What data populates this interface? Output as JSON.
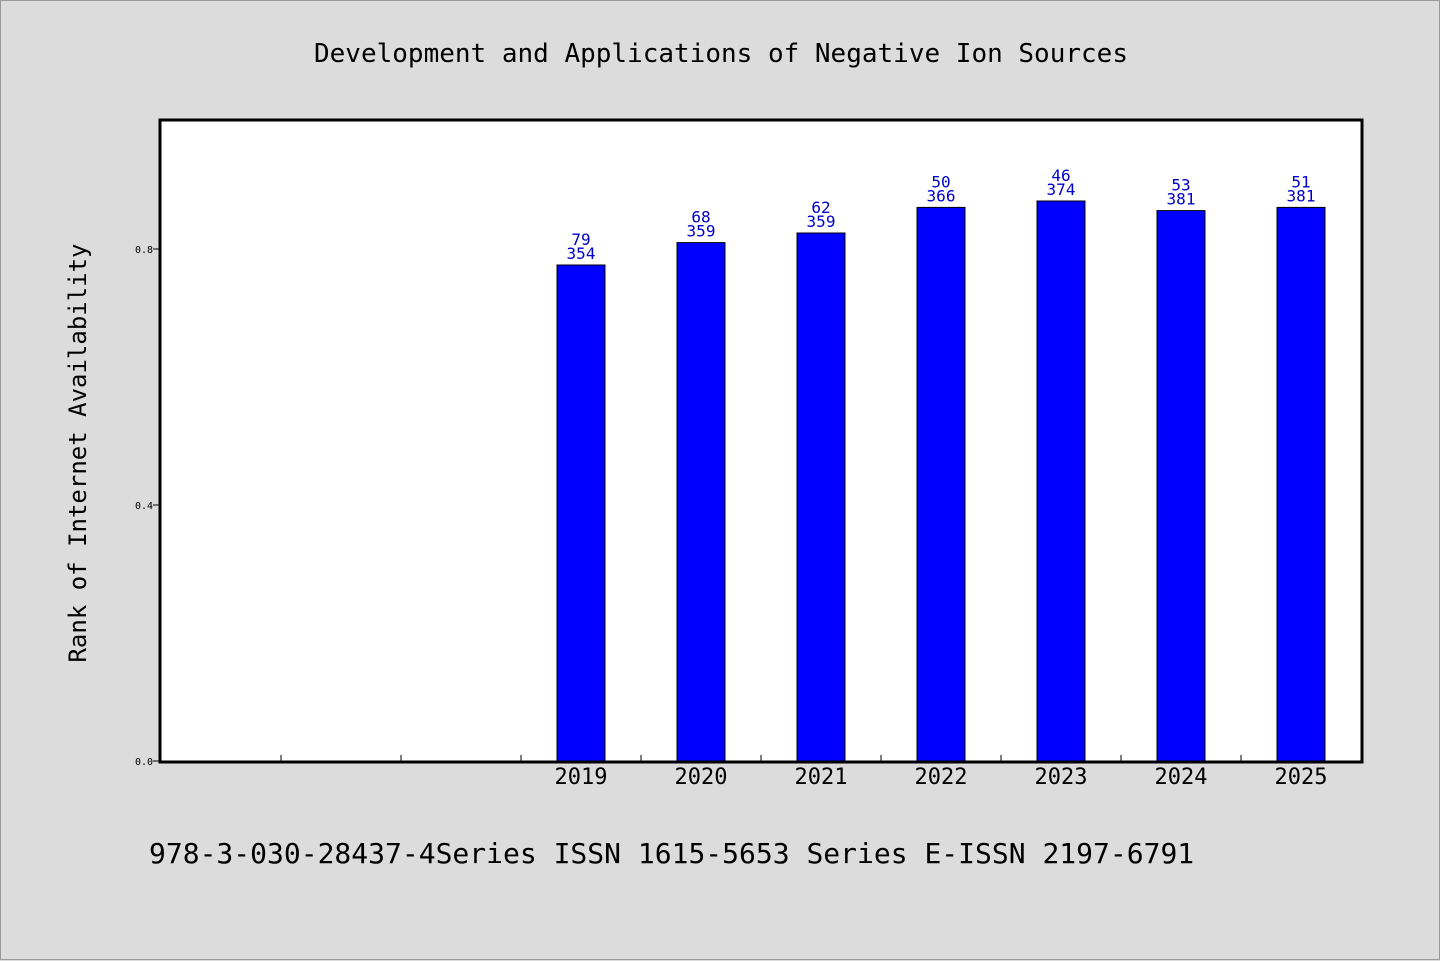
{
  "chart_data": {
    "type": "bar",
    "title": "Development and Applications of Negative Ion Sources",
    "xlabel": "",
    "ylabel": "Rank of Internet Availability",
    "footer": "978-3-030-28437-4Series ISSN 1615-5653 Series E-ISSN 2197-6791",
    "categories": [
      "",
      "",
      "",
      "2019",
      "2020",
      "2021",
      "2022",
      "2023",
      "2024",
      "2025"
    ],
    "values": [
      null,
      null,
      null,
      0.775,
      0.81,
      0.825,
      0.865,
      0.875,
      0.86,
      0.865
    ],
    "bar_labels": [
      null,
      null,
      null,
      [
        "79",
        "354"
      ],
      [
        "68",
        "359"
      ],
      [
        "62",
        "359"
      ],
      [
        "50",
        "366"
      ],
      [
        "46",
        "374"
      ],
      [
        "53",
        "381"
      ],
      [
        "51",
        "381"
      ]
    ],
    "yticks": [
      "0.0",
      "0.4",
      "0.8"
    ],
    "ylim": [
      0,
      1.0
    ],
    "grid": false,
    "colors": {
      "bar": "#0000ff",
      "bar_label": "#0000cc",
      "plot_bg": "#ffffff",
      "page_bg": "#dcdcdc"
    }
  }
}
